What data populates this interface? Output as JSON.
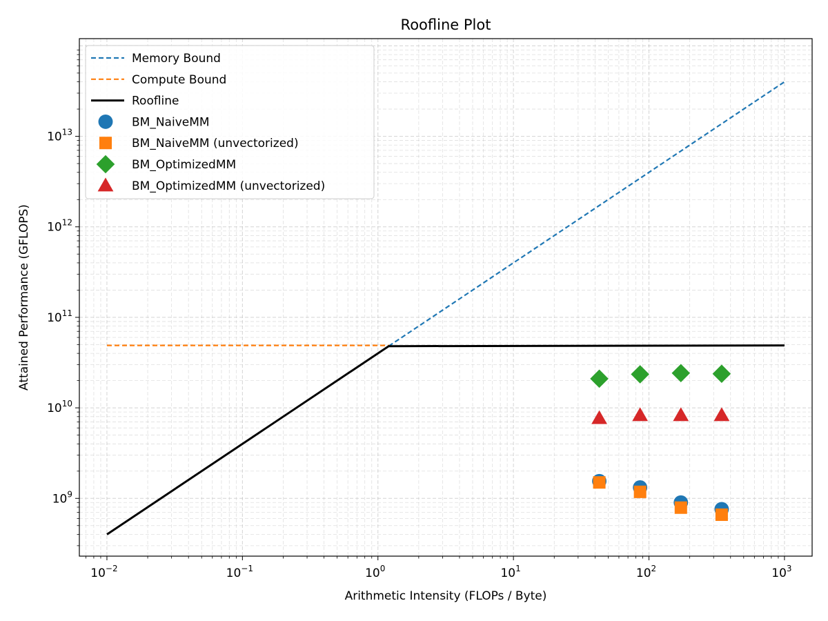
{
  "chart_data": {
    "type": "scatter",
    "title": "Roofline Plot",
    "xlabel": "Arithmetic Intensity (FLOPs / Byte)",
    "ylabel": "Attained Performance (GFLOPS)",
    "xscale": "log",
    "yscale": "log",
    "xlim": [
      0.00626,
      1600
    ],
    "ylim": [
      230000000,
      120000000000000
    ],
    "grid": true,
    "legend_position": "top-left",
    "x_ticks": [
      {
        "value": 0.01,
        "base": "10",
        "exp": "−2"
      },
      {
        "value": 0.1,
        "base": "10",
        "exp": "−1"
      },
      {
        "value": 1,
        "base": "10",
        "exp": "0"
      },
      {
        "value": 10,
        "base": "10",
        "exp": "1"
      },
      {
        "value": 100,
        "base": "10",
        "exp": "2"
      },
      {
        "value": 1000,
        "base": "10",
        "exp": "3"
      }
    ],
    "y_ticks": [
      {
        "value": 1000000000,
        "base": "10",
        "exp": "9"
      },
      {
        "value": 10000000000,
        "base": "10",
        "exp": "10"
      },
      {
        "value": 100000000000,
        "base": "10",
        "exp": "11"
      },
      {
        "value": 1000000000000,
        "base": "10",
        "exp": "12"
      },
      {
        "value": 10000000000000,
        "base": "10",
        "exp": "13"
      }
    ],
    "lines": [
      {
        "name": "Memory Bound",
        "style": "dashed",
        "color": "#1f77b4",
        "x": [
          1.2,
          1000
        ],
        "y": [
          48000000000,
          40000000000000
        ]
      },
      {
        "name": "Compute Bound",
        "style": "dashed",
        "color": "#ff7f0e",
        "x": [
          0.01,
          1.2
        ],
        "y": [
          49000000000,
          49000000000
        ]
      },
      {
        "name": "Roofline",
        "style": "solid",
        "color": "#000000",
        "x": [
          0.01,
          1.2,
          1000
        ],
        "y": [
          400000000,
          48000000000,
          49000000000
        ]
      }
    ],
    "series": [
      {
        "name": "BM_NaiveMM",
        "marker": "circle",
        "color": "#1f77b4",
        "x": [
          43,
          86,
          172,
          344
        ],
        "y": [
          1550000000,
          1320000000,
          900000000,
          760000000
        ]
      },
      {
        "name": "BM_NaiveMM (unvectorized)",
        "marker": "square",
        "color": "#ff7f0e",
        "x": [
          43,
          86,
          172,
          344
        ],
        "y": [
          1500000000,
          1180000000,
          790000000,
          660000000
        ]
      },
      {
        "name": "BM_OptimizedMM",
        "marker": "diamond",
        "color": "#2ca02c",
        "x": [
          43,
          86,
          172,
          344
        ],
        "y": [
          21000000000,
          23500000000,
          24200000000,
          23800000000
        ]
      },
      {
        "name": "BM_OptimizedMM (unvectorized)",
        "marker": "triangle",
        "color": "#d62728",
        "x": [
          43,
          86,
          172,
          344
        ],
        "y": [
          7700000000,
          8300000000,
          8300000000,
          8300000000
        ]
      }
    ]
  }
}
